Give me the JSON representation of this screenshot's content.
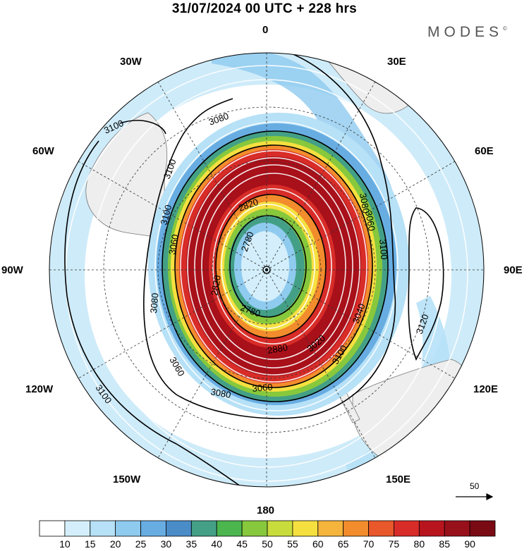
{
  "title": "31/07/2024  00 UTC  + 228 hrs",
  "brand": "MODES",
  "brand_mark": "©",
  "longitude_labels": {
    "lon_0": "0",
    "lon_30e": "30E",
    "lon_60e": "60E",
    "lon_90e": "90E",
    "lon_120e": "120E",
    "lon_150e": "150E",
    "lon_180": "180",
    "lon_150w": "150W",
    "lon_120w": "120W",
    "lon_90w": "90W",
    "lon_60w": "60W",
    "lon_30w": "30W"
  },
  "contour_labels": [
    "3100",
    "3080",
    "3100",
    "3100",
    "3060",
    "3080",
    "3060",
    "3080",
    "3060",
    "3100",
    "3080",
    "3060",
    "3100",
    "3120",
    "3100",
    "3040",
    "2820",
    "2780",
    "2780",
    "3020",
    "2880",
    "2820"
  ],
  "wind_reference": {
    "label": "50",
    "arrow_icon": "reference-arrow-icon"
  },
  "colorbar": {
    "labels": [
      "10",
      "15",
      "20",
      "25",
      "30",
      "35",
      "40",
      "45",
      "50",
      "55",
      "60",
      "65",
      "70",
      "75",
      "80",
      "85",
      "90"
    ],
    "colors": [
      "#ffffff",
      "#d4effb",
      "#b6e1f7",
      "#8fcbef",
      "#68ade2",
      "#4a8cc8",
      "#43a087",
      "#4bb54e",
      "#87c83c",
      "#c8dc3c",
      "#f5e040",
      "#f5b43c",
      "#f28c2c",
      "#e8582a",
      "#d82c28",
      "#b8141e",
      "#98101a",
      "#7a0a14"
    ]
  },
  "colors": {
    "coast": "#777777",
    "land": "#eeeeee",
    "contour": "#000000",
    "graticule": "#333333"
  }
}
